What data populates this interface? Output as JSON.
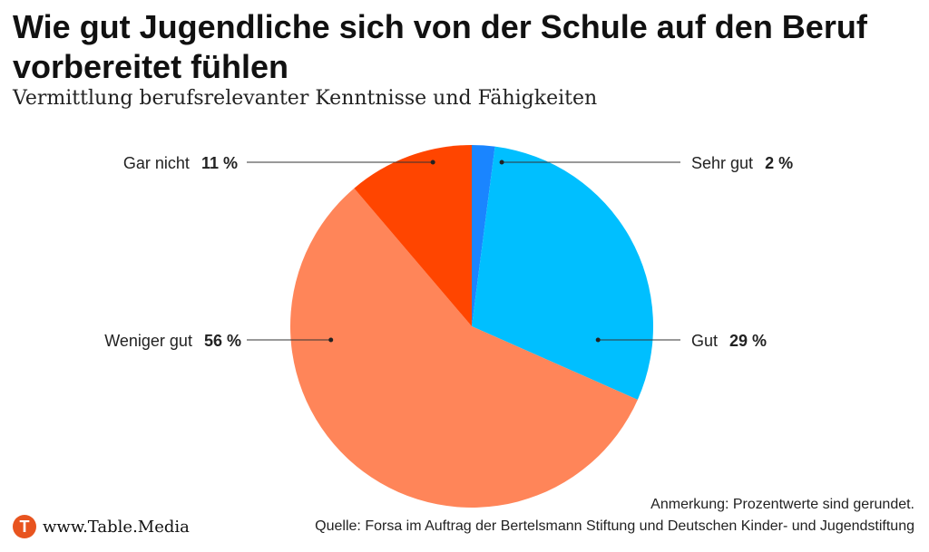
{
  "title": "Wie gut Jugendliche sich von der Schule auf den Beruf vorbereitet fühlen",
  "subtitle": "Vermittlung berufsrelevanter Kenntnisse und Fähigkeiten",
  "chart_data": {
    "type": "pie",
    "slices": [
      {
        "label": "Sehr gut",
        "value": 2,
        "display": "2 %",
        "color": "#1a85ff"
      },
      {
        "label": "Gut",
        "value": 29,
        "display": "29 %",
        "color": "#00bfff"
      },
      {
        "label": "Weniger gut",
        "value": 56,
        "display": "56 %",
        "color": "#ff8559"
      },
      {
        "label": "Gar nicht",
        "value": 11,
        "display": "11 %",
        "color": "#ff4500"
      }
    ]
  },
  "note": "Anmerkung: Prozentwerte sind gerundet.",
  "source": "Quelle: Forsa im Auftrag der Bertelsmann Stiftung und Deutschen Kinder- und Jugendstiftung",
  "brand": {
    "logo_letter": "T",
    "text": "www.Table.Media"
  }
}
